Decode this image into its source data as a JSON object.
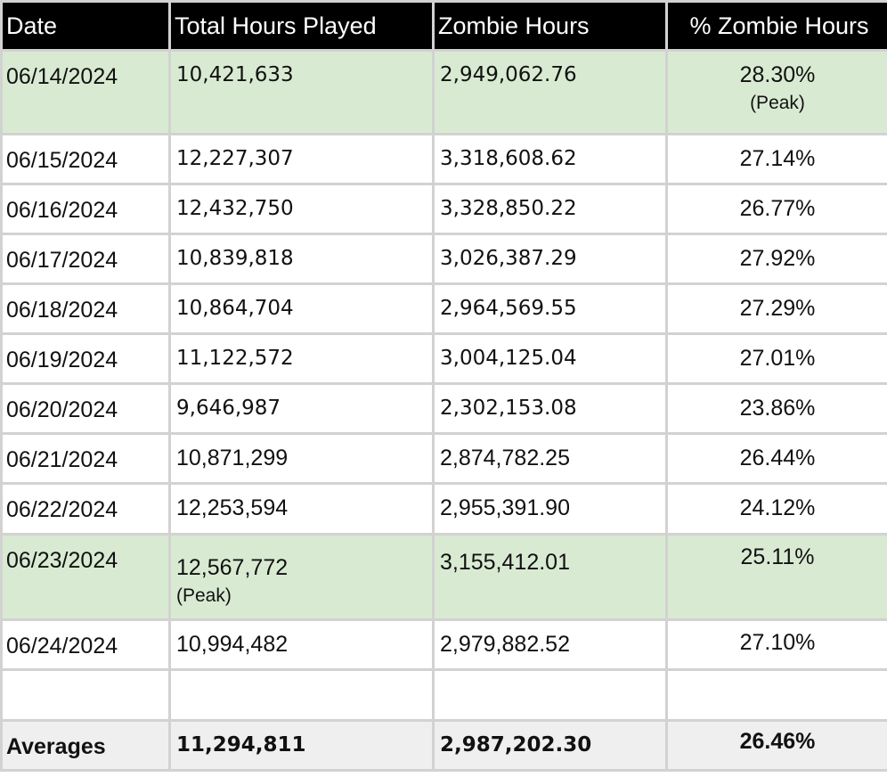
{
  "columns": [
    "Date",
    "Total Hours Played",
    "Zombie Hours",
    "% Zombie Hours"
  ],
  "rows": [
    {
      "date": "06/14/2024",
      "total": "10,421,633",
      "zombie": "2,949,062.76",
      "pct": "28.30%",
      "pct_note": "(Peak)",
      "highlight": true
    },
    {
      "date": "06/15/2024",
      "total": "12,227,307",
      "zombie": "3,318,608.62",
      "pct": "27.14%"
    },
    {
      "date": "06/16/2024",
      "total": "12,432,750",
      "zombie": "3,328,850.22",
      "pct": "26.77%"
    },
    {
      "date": "06/17/2024",
      "total": "10,839,818",
      "zombie": "3,026,387.29",
      "pct": "27.92%"
    },
    {
      "date": "06/18/2024",
      "total": "10,864,704",
      "zombie": "2,964,569.55",
      "pct": "27.29%"
    },
    {
      "date": "06/19/2024",
      "total": "11,122,572",
      "zombie": "3,004,125.04",
      "pct": "27.01%"
    },
    {
      "date": "06/20/2024",
      "total": "9,646,987",
      "zombie": "2,302,153.08",
      "pct": "23.86%"
    },
    {
      "date": "06/21/2024",
      "total": "10,871,299",
      "zombie": "2,874,782.25",
      "pct": "26.44%"
    },
    {
      "date": "06/22/2024",
      "total": "12,253,594",
      "zombie": "2,955,391.90",
      "pct": "24.12%"
    },
    {
      "date": "06/23/2024",
      "total": "12,567,772",
      "total_note": "(Peak)",
      "zombie": "3,155,412.01",
      "pct": "25.11%",
      "highlight": true
    },
    {
      "date": "06/24/2024",
      "total": "10,994,482",
      "zombie": "2,979,882.52",
      "pct": "27.10%"
    },
    {
      "date": "",
      "total": "",
      "zombie": "",
      "pct": ""
    }
  ],
  "averages": {
    "label": "Averages",
    "total": "11,294,811",
    "zombie": "2,987,202.30",
    "pct": "26.46%"
  }
}
